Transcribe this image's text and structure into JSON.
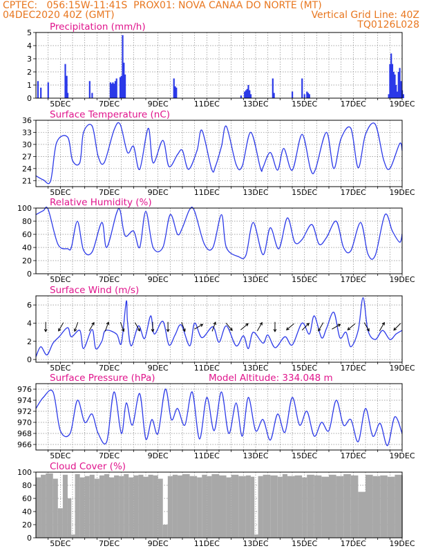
{
  "header": {
    "line1_left": "CPTEC:   056:15W-11:41S  PROX01: NOVA CANAA DO NORTE (MT)",
    "line2_left": "04DEC2020 40Z (GMT)",
    "line2_right": "Vertical Grid Line: 40Z",
    "line3_right": "TQ0126L028"
  },
  "colors": {
    "header": "#e8761e",
    "panel_title": "#e0148c",
    "series": "#2b39e8",
    "cloud": "#a8a8a8"
  },
  "date_ticks": [
    "5DEC",
    "7DEC",
    "9DEC",
    "11DEC",
    "13DEC",
    "15DEC",
    "17DEC",
    "19DEC"
  ],
  "chart_data": [
    {
      "id": "precip",
      "type": "bar",
      "title": "Precipitation (mm/h)",
      "ylim": [
        0,
        5
      ],
      "yticks": [
        0,
        1,
        2,
        3,
        4,
        5
      ],
      "x": [
        4.08,
        4.2,
        4.5,
        5.2,
        5.26,
        5.3,
        6.2,
        6.3,
        7.05,
        7.1,
        7.15,
        7.2,
        7.25,
        7.3,
        7.45,
        7.5,
        7.55,
        7.6,
        7.65,
        9.65,
        9.7,
        9.75,
        12.4,
        12.55,
        12.6,
        12.65,
        12.7,
        12.75,
        12.8,
        13.7,
        13.75,
        14.5,
        14.9,
        15.0,
        15.1,
        15.15,
        15.2,
        18.45,
        18.5,
        18.55,
        18.6,
        18.65,
        18.7,
        18.75,
        18.8,
        18.85,
        18.9,
        18.95,
        19.0,
        19.05
      ],
      "values": [
        1.3,
        0.8,
        1.2,
        2.6,
        1.7,
        0.4,
        1.3,
        0.4,
        1.2,
        1.1,
        1.2,
        1.1,
        1.3,
        1.5,
        1.6,
        1.7,
        4.8,
        2.7,
        1.8,
        1.5,
        0.9,
        0.8,
        0.2,
        0.5,
        0.6,
        0.7,
        1.0,
        0.6,
        0.3,
        1.5,
        0.4,
        0.5,
        1.5,
        0.3,
        0.5,
        0.4,
        0.3,
        0.3,
        2.6,
        3.4,
        2.6,
        2.0,
        1.8,
        1.0,
        0.5,
        2.0,
        2.3,
        1.3,
        0.6,
        0.3
      ],
      "grid": true
    },
    {
      "id": "temp",
      "type": "line",
      "title": "Surface Temperature (nC)",
      "ylim": [
        19.5,
        36
      ],
      "yticks": [
        21,
        24,
        27,
        30,
        33,
        36
      ],
      "x": [
        4.0,
        4.3,
        4.6,
        4.85,
        5.3,
        5.5,
        5.8,
        5.95,
        6.3,
        6.55,
        6.8,
        7.2,
        7.45,
        7.75,
        8.0,
        8.25,
        8.6,
        8.8,
        9.2,
        9.45,
        9.8,
        10.0,
        10.25,
        10.6,
        10.8,
        11.2,
        11.35,
        11.6,
        11.8,
        12.2,
        12.45,
        12.8,
        13.2,
        13.3,
        13.6,
        13.9,
        14.15,
        14.5,
        14.9,
        15.25,
        15.45,
        15.9,
        16.2,
        16.5,
        16.9,
        17.2,
        17.5,
        17.9,
        18.25,
        18.5,
        18.9,
        19.0
      ],
      "values": [
        22.2,
        21.2,
        20.9,
        30.5,
        31.8,
        26.0,
        25.5,
        33.0,
        34.6,
        27.0,
        25.5,
        33.6,
        35.0,
        28.0,
        29.5,
        23.8,
        34.0,
        25.4,
        31.0,
        24.5,
        27.5,
        28.5,
        23.8,
        28.5,
        33.5,
        23.8,
        24.5,
        29.5,
        34.5,
        25.0,
        24.6,
        33.0,
        24.0,
        24.3,
        28.0,
        23.6,
        29.0,
        23.6,
        32.5,
        23.8,
        23.8,
        33.0,
        24.0,
        31.5,
        34.0,
        24.2,
        32.5,
        35.0,
        26.0,
        24.0,
        30.2,
        28.5
      ],
      "grid": true
    },
    {
      "id": "rh",
      "type": "line",
      "title": "Relative Humidity (%)",
      "ylim": [
        0,
        100
      ],
      "yticks": [
        0,
        20,
        40,
        60,
        80,
        100
      ],
      "x": [
        4.0,
        4.3,
        4.5,
        4.9,
        5.3,
        5.45,
        5.7,
        5.95,
        6.3,
        6.7,
        6.9,
        7.3,
        7.45,
        7.65,
        8.0,
        8.25,
        8.5,
        8.8,
        9.2,
        9.5,
        9.8,
        10.0,
        10.3,
        10.5,
        10.9,
        11.25,
        11.6,
        11.8,
        12.3,
        12.6,
        12.9,
        13.3,
        13.6,
        13.95,
        14.3,
        14.6,
        14.9,
        15.3,
        15.6,
        15.9,
        16.3,
        16.6,
        16.9,
        17.3,
        17.6,
        17.9,
        18.3,
        18.6,
        18.9,
        19.0
      ],
      "values": [
        90,
        96,
        98,
        45,
        38,
        40,
        80,
        36,
        33,
        78,
        40,
        92,
        96,
        58,
        65,
        40,
        95,
        40,
        40,
        90,
        60,
        70,
        98,
        95,
        45,
        40,
        90,
        40,
        26,
        28,
        78,
        29,
        70,
        38,
        85,
        48,
        52,
        75,
        45,
        55,
        80,
        40,
        35,
        78,
        30,
        28,
        90,
        65,
        48,
        60
      ],
      "grid": true
    },
    {
      "id": "wind",
      "type": "line",
      "title": "Surface Wind (m/s)",
      "ylim": [
        -0.3,
        7
      ],
      "yticks": [
        0,
        2,
        4,
        6
      ],
      "x": [
        4.0,
        4.2,
        4.45,
        4.7,
        4.95,
        5.3,
        5.45,
        5.8,
        5.95,
        6.3,
        6.45,
        6.7,
        6.85,
        7.3,
        7.5,
        7.7,
        7.75,
        7.9,
        8.2,
        8.45,
        8.7,
        8.85,
        9.2,
        9.45,
        9.7,
        9.95,
        10.3,
        10.5,
        10.8,
        11.25,
        11.5,
        11.8,
        12.2,
        12.5,
        12.7,
        12.9,
        13.3,
        13.5,
        13.8,
        14.2,
        14.5,
        14.9,
        15.2,
        15.4,
        15.7,
        15.9,
        16.2,
        16.45,
        16.7,
        16.9,
        17.2,
        17.4,
        17.6,
        17.9,
        18.2,
        18.5,
        18.75,
        19.0
      ],
      "values": [
        0.3,
        1.4,
        0.5,
        1.8,
        2.5,
        3.5,
        2.5,
        3.2,
        1.2,
        3.3,
        1.2,
        2.0,
        3.2,
        2.8,
        1.8,
        6.4,
        4.2,
        1.5,
        3.7,
        2.3,
        4.8,
        2.8,
        4.2,
        1.6,
        2.7,
        3.8,
        1.5,
        4.0,
        2.4,
        3.6,
        1.9,
        3.7,
        1.5,
        2.6,
        1.2,
        3.0,
        1.8,
        2.7,
        1.3,
        2.5,
        1.6,
        4.0,
        2.8,
        4.8,
        2.4,
        3.4,
        5.2,
        2.4,
        3.0,
        1.4,
        3.2,
        6.8,
        3.2,
        2.2,
        3.2,
        2.2,
        2.8,
        3.2
      ],
      "arrow_directions_deg": [
        180,
        210,
        200,
        30,
        20,
        160,
        150,
        180,
        180,
        160,
        60,
        20,
        140,
        50,
        30,
        180,
        230,
        45,
        210,
        60,
        230,
        150,
        30,
        225
      ],
      "grid": true
    },
    {
      "id": "pres",
      "type": "line",
      "title": "Surface Pressure (hPa)",
      "subtitle": "Model Altitude: 334.048 m",
      "ylim": [
        965,
        977
      ],
      "yticks": [
        966,
        968,
        970,
        972,
        974,
        976
      ],
      "x": [
        4.0,
        4.3,
        4.7,
        5.0,
        5.4,
        5.7,
        6.0,
        6.3,
        6.55,
        6.9,
        7.2,
        7.5,
        7.7,
        7.95,
        8.25,
        8.5,
        8.75,
        9.0,
        9.3,
        9.55,
        9.8,
        10.1,
        10.4,
        10.7,
        11.0,
        11.3,
        11.6,
        11.9,
        12.2,
        12.45,
        12.7,
        13.0,
        13.3,
        13.6,
        13.9,
        14.2,
        14.5,
        14.8,
        15.1,
        15.4,
        15.7,
        16.0,
        16.3,
        16.6,
        16.9,
        17.2,
        17.5,
        17.8,
        18.1,
        18.4,
        18.7,
        19.0
      ],
      "values": [
        972.5,
        974.5,
        975.5,
        968.5,
        968.0,
        974.0,
        970.0,
        971.5,
        968.0,
        966.5,
        975.5,
        968.0,
        973.5,
        969.5,
        975.2,
        967.0,
        970.5,
        968.0,
        976.0,
        970.5,
        972.5,
        969.5,
        975.5,
        967.0,
        974.5,
        968.5,
        975.5,
        968.0,
        973.5,
        967.5,
        974.5,
        968.5,
        970.5,
        966.8,
        971.5,
        968.2,
        974.5,
        969.5,
        972.0,
        967.5,
        970.0,
        968.5,
        974.0,
        969.5,
        970.5,
        966.5,
        972.5,
        967.5,
        969.8,
        965.8,
        971.0,
        968.0
      ],
      "grid": true
    },
    {
      "id": "cloud",
      "type": "area",
      "title": "Cloud Cover (%)",
      "ylim": [
        0,
        100
      ],
      "yticks": [
        0,
        20,
        40,
        60,
        80,
        100
      ],
      "x": [
        4.0,
        4.2,
        4.4,
        4.7,
        4.9,
        5.1,
        5.3,
        5.45,
        5.6,
        5.8,
        6.0,
        6.2,
        6.4,
        6.6,
        6.8,
        7.0,
        7.2,
        7.4,
        7.6,
        7.8,
        8.0,
        8.2,
        8.4,
        8.6,
        8.8,
        9.0,
        9.2,
        9.4,
        9.6,
        9.8,
        10.0,
        10.3,
        10.6,
        10.8,
        11.0,
        11.2,
        11.5,
        11.8,
        12.0,
        12.3,
        12.6,
        12.8,
        12.95,
        13.1,
        13.3,
        13.6,
        13.9,
        14.1,
        14.3,
        14.6,
        14.9,
        15.1,
        15.4,
        15.7,
        16.0,
        16.3,
        16.6,
        16.9,
        17.2,
        17.5,
        17.8,
        18.1,
        18.4,
        18.7,
        19.0
      ],
      "values": [
        92,
        96,
        98,
        90,
        45,
        96,
        60,
        5,
        97,
        92,
        94,
        96,
        90,
        95,
        97,
        92,
        95,
        94,
        97,
        92,
        95,
        96,
        93,
        96,
        95,
        90,
        20,
        94,
        96,
        95,
        97,
        94,
        92,
        96,
        94,
        97,
        95,
        92,
        96,
        94,
        95,
        93,
        5,
        94,
        96,
        95,
        93,
        97,
        94,
        95,
        92,
        96,
        95,
        93,
        96,
        94,
        97,
        95,
        70,
        96,
        94,
        95,
        93,
        96,
        95
      ],
      "grid": true
    }
  ]
}
